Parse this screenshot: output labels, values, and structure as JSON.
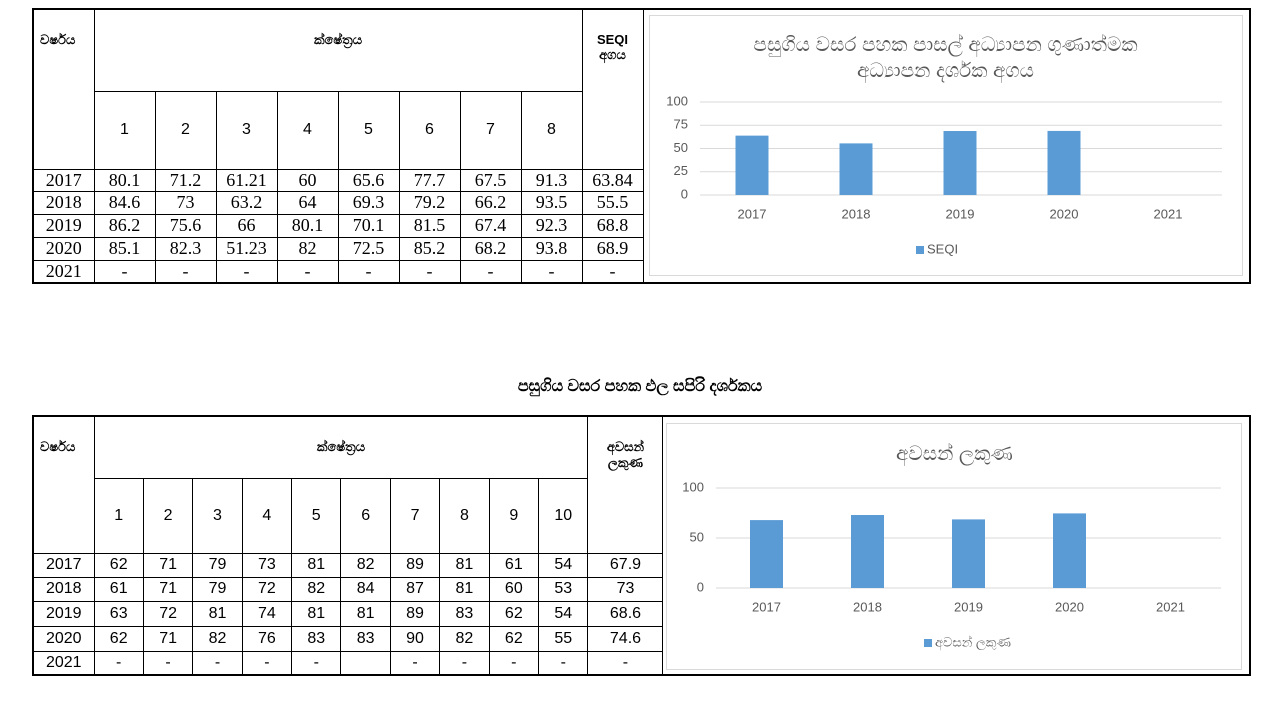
{
  "tables": [
    {
      "header": {
        "year": "වර්ෂය",
        "field": "ක්ෂේත්‍රය",
        "last": [
          "SEQI",
          "අගය"
        ]
      },
      "columns": [
        1,
        2,
        3,
        4,
        5,
        6,
        7,
        8
      ],
      "rows": [
        [
          "2017",
          80.1,
          71.2,
          61.21,
          60,
          65.6,
          77.7,
          67.5,
          91.3,
          63.84
        ],
        [
          "2018",
          84.6,
          73,
          63.2,
          64,
          69.3,
          79.2,
          66.2,
          93.5,
          55.5
        ],
        [
          "2019",
          86.2,
          75.6,
          66,
          80.1,
          70.1,
          81.5,
          67.4,
          92.3,
          68.8
        ],
        [
          "2020",
          85.1,
          82.3,
          51.23,
          82,
          72.5,
          85.2,
          68.2,
          93.8,
          68.9
        ],
        [
          "2021",
          "-",
          "-",
          "-",
          "-",
          "-",
          "-",
          "-",
          "-",
          "-"
        ]
      ]
    },
    {
      "header": {
        "year": "වර්ෂය",
        "field": "ක්ෂේත්‍රය",
        "last": [
          "අවසන්",
          "ලකුණ"
        ]
      },
      "columns": [
        1,
        2,
        3,
        4,
        5,
        6,
        7,
        8,
        9,
        10
      ],
      "rows": [
        [
          "2017",
          62,
          71,
          79,
          73,
          81,
          82,
          89,
          81,
          61,
          54,
          67.9
        ],
        [
          "2018",
          61,
          71,
          79,
          72,
          82,
          84,
          87,
          81,
          60,
          53,
          73
        ],
        [
          "2019",
          63,
          72,
          81,
          74,
          81,
          81,
          89,
          83,
          62,
          54,
          68.6
        ],
        [
          "2020",
          62,
          71,
          82,
          76,
          83,
          83,
          90,
          82,
          62,
          55,
          74.6
        ],
        [
          "2021",
          "-",
          "-",
          "-",
          "-",
          "-",
          null,
          "-",
          "-",
          "-",
          "-",
          "-"
        ]
      ]
    }
  ],
  "heading": "පසුගිය වසර පහක ඵල සපිරි දර්ශකය",
  "chart_data": [
    {
      "type": "bar",
      "title": "පසුගිය වසර පහක පාසල් අධ්‍යාපන ගුණාත්මක අධ්‍යාපන දර්ශක අගය",
      "categories": [
        "2017",
        "2018",
        "2019",
        "2020",
        "2021"
      ],
      "series": [
        {
          "name": "SEQI",
          "color": "#5b9bd5",
          "values": [
            63.84,
            55.5,
            68.8,
            68.9,
            null
          ]
        }
      ],
      "ylim": [
        0,
        100
      ],
      "yticks": [
        0,
        25,
        50,
        75,
        100
      ],
      "grid": true,
      "legend": "bottom"
    },
    {
      "type": "bar",
      "title": "අවසන් ලකුණ",
      "categories": [
        "2017",
        "2018",
        "2019",
        "2020",
        "2021"
      ],
      "series": [
        {
          "name": "අවසන් ලකුණ",
          "color": "#5b9bd5",
          "values": [
            67.9,
            73,
            68.6,
            74.6,
            null
          ]
        }
      ],
      "ylim": [
        0,
        100
      ],
      "yticks": [
        0,
        50,
        100
      ],
      "grid": true,
      "legend": "bottom"
    }
  ]
}
